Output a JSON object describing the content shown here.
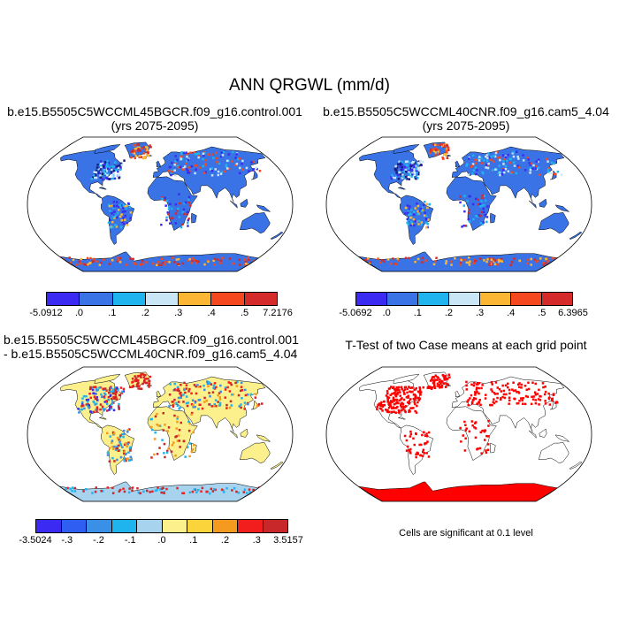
{
  "title": "ANN QRGWL (mm/d)",
  "panels": {
    "p1": {
      "line1": "b.e15.B5505C5WCCML45BGCR.f09_g16.control.001",
      "line2": "(yrs 2075-2095)"
    },
    "p2": {
      "line1": "b.e15.B5505C5WCCML40CNR.f09_g16.cam5_4.04",
      "line2": "(yrs 2075-2095)"
    },
    "p3": {
      "line1": "b.e15.B5505C5WCCML45BGCR.f09_g16.control.001",
      "line2": "- b.e15.B5505C5WCCML40CNR.f09_g16.cam5_4.04"
    },
    "p4": {
      "line1": "T-Test of two Case means at each grid point",
      "note": "Cells are significant at 0.1 level"
    }
  },
  "colorbars": {
    "cb1": {
      "colors": [
        "#3b2bf2",
        "#3a73e6",
        "#20b4ef",
        "#c8e6f6",
        "#fbb734",
        "#f5481e",
        "#d42a2a"
      ],
      "labels": [
        "-5.0912",
        ".0",
        ".1",
        ".2",
        ".3",
        ".4",
        ".5",
        "7.2176"
      ]
    },
    "cb2": {
      "colors": [
        "#3b2bf2",
        "#3a73e6",
        "#20b4ef",
        "#c8e6f6",
        "#fbb734",
        "#f5481e",
        "#d42a2a"
      ],
      "labels": [
        "-5.0692",
        ".0",
        ".1",
        ".2",
        ".3",
        ".4",
        ".5",
        "6.3965"
      ]
    },
    "cb3": {
      "colors": [
        "#3b2bf2",
        "#2e5ef2",
        "#3a8fe6",
        "#20b4ef",
        "#a7d3ef",
        "#fbf08c",
        "#fbd33a",
        "#f39a1f",
        "#f21d1d",
        "#c8282a"
      ],
      "labels": [
        "-3.5024",
        "-.3",
        "-.2",
        "-.1",
        ".0",
        ".1",
        ".2",
        ".3",
        "3.5157"
      ]
    }
  },
  "map_colors": {
    "ocean": "#ffffff",
    "land_p1": "#3a73e6",
    "land_p2": "#3a73e6",
    "land_p3": "#fbf08c",
    "land_p4": "#ffffff",
    "antarctica_p3": "#a7d3ef",
    "signif": "#ff0000"
  }
}
